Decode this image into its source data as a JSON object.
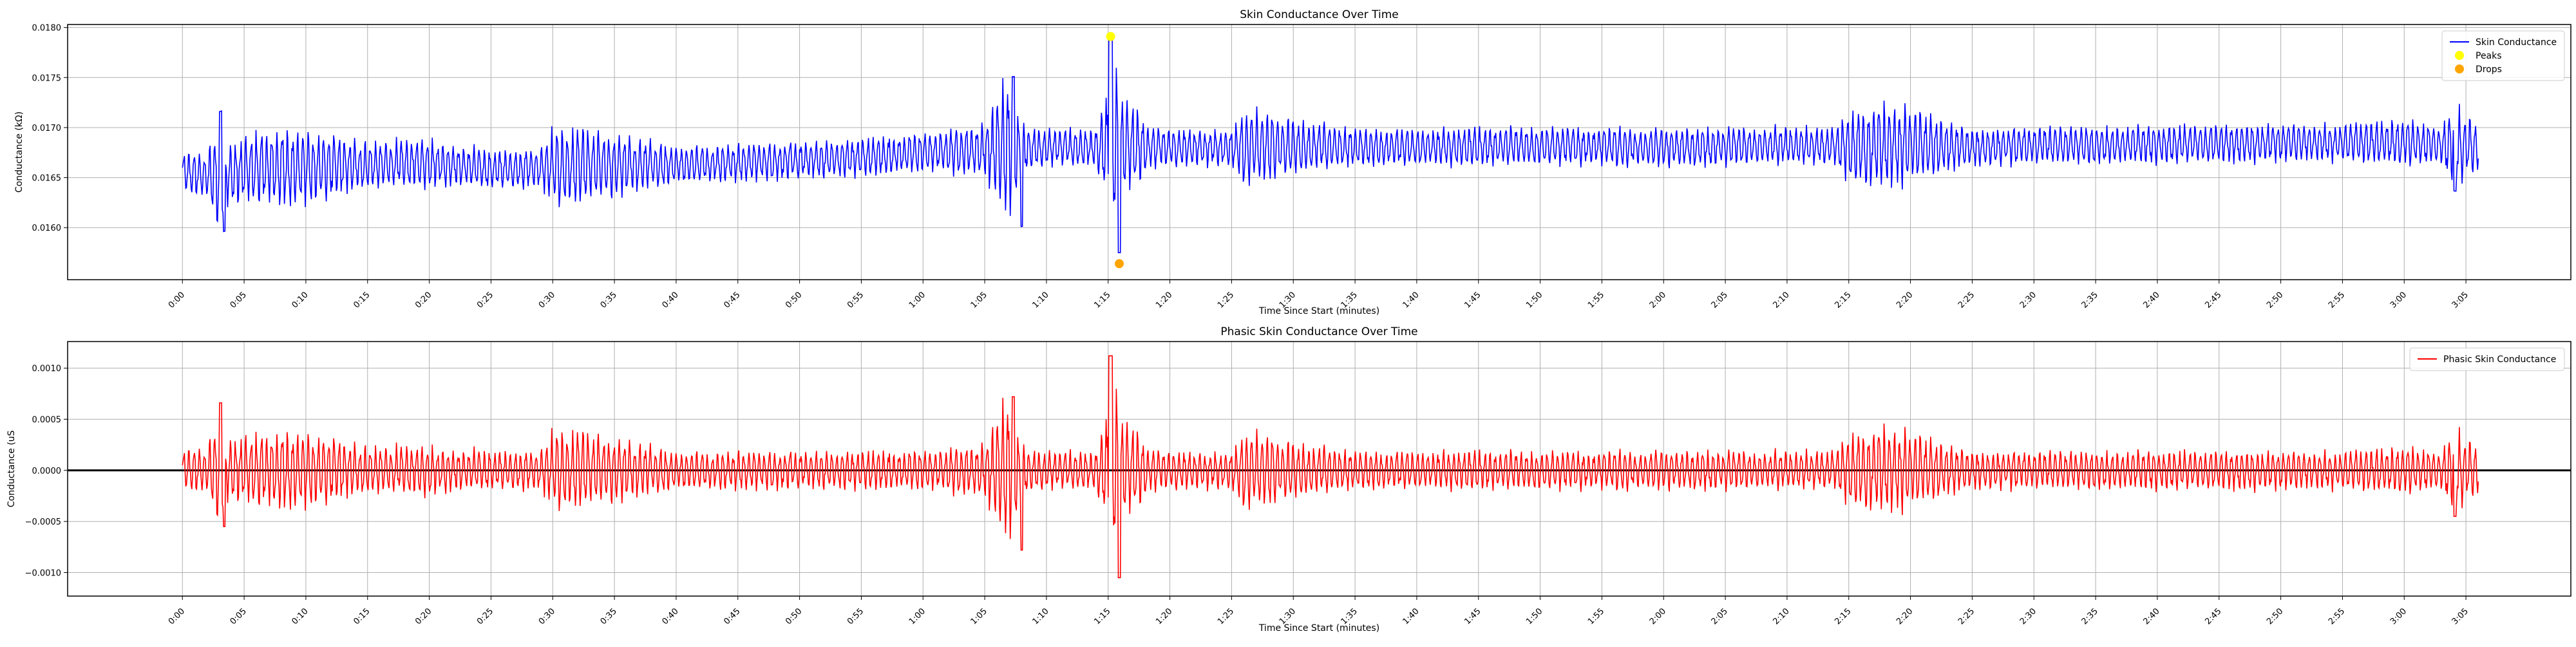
{
  "chart_data": [
    {
      "type": "line",
      "title": "Skin Conductance Over Time",
      "xlabel": "Time Since Start (minutes)",
      "ylabel": "Conductance (kΩ)",
      "x_unit": "minutes",
      "xlim": [
        -9.3,
        193.5
      ],
      "ylim": [
        0.01548,
        0.01803
      ],
      "xticks": [
        0,
        5,
        10,
        15,
        20,
        25,
        30,
        35,
        40,
        45,
        50,
        55,
        60,
        65,
        70,
        75,
        80,
        85,
        90,
        95,
        100,
        105,
        110,
        115,
        120,
        125,
        130,
        135,
        140,
        145,
        150,
        155,
        160,
        165,
        170,
        175,
        180,
        185
      ],
      "xtick_labels": [
        "0:00",
        "0:05",
        "0:10",
        "0:15",
        "0:20",
        "0:25",
        "0:30",
        "0:35",
        "0:40",
        "0:45",
        "0:50",
        "0:55",
        "1:00",
        "1:05",
        "1:10",
        "1:15",
        "1:20",
        "1:25",
        "1:30",
        "1:35",
        "1:40",
        "1:45",
        "1:50",
        "1:55",
        "2:00",
        "2:05",
        "2:10",
        "2:15",
        "2:20",
        "2:25",
        "2:30",
        "2:35",
        "2:40",
        "2:45",
        "2:50",
        "2:55",
        "3:00",
        "3:05"
      ],
      "yticks": [
        0.016,
        0.0165,
        0.017,
        0.0175,
        0.018
      ],
      "ytick_labels": [
        "0.0160",
        "0.0165",
        "0.0170",
        "0.0175",
        "0.0180"
      ],
      "grid": true,
      "legend_position": "top-right",
      "baseline": {
        "x": [
          0,
          3,
          6,
          10,
          15,
          20,
          25,
          30,
          35,
          40,
          45,
          50,
          55,
          60,
          65,
          70,
          75,
          80,
          85,
          90,
          100,
          110,
          120,
          130,
          135,
          140,
          145,
          150,
          160,
          170,
          180,
          186
        ],
        "y": [
          0.01655,
          0.0165,
          0.0166,
          0.0166,
          0.01662,
          0.01665,
          0.01658,
          0.0166,
          0.01662,
          0.01663,
          0.01665,
          0.01667,
          0.0167,
          0.01675,
          0.01678,
          0.0168,
          0.0168,
          0.0168,
          0.0168,
          0.01681,
          0.0168,
          0.01682,
          0.0168,
          0.01682,
          0.0168,
          0.01682,
          0.0168,
          0.01682,
          0.01683,
          0.01685,
          0.01685,
          0.0168
        ]
      },
      "envelope": {
        "x": [
          0,
          2,
          3,
          3.5,
          5,
          8,
          10,
          15,
          20,
          25,
          29,
          30,
          32,
          35,
          40,
          45,
          50,
          55,
          60,
          64,
          65,
          66.5,
          67,
          68,
          70,
          74,
          74.8,
          75.2,
          75.6,
          76,
          77,
          78,
          80,
          85,
          86,
          90,
          95,
          100,
          110,
          120,
          130,
          134,
          135,
          137,
          140,
          145,
          150,
          155,
          160,
          165,
          170,
          175,
          180,
          183,
          184,
          186
        ],
        "amp": [
          0.0002,
          0.00025,
          0.00065,
          0.0003,
          0.00035,
          0.0004,
          0.0004,
          0.00025,
          0.00025,
          0.0002,
          0.0002,
          0.0004,
          0.0004,
          0.00035,
          0.0002,
          0.0002,
          0.0002,
          0.0002,
          0.0002,
          0.00025,
          0.0003,
          0.0007,
          0.0007,
          0.00025,
          0.0002,
          0.0002,
          0.0006,
          0.0011,
          0.001,
          0.0005,
          0.0005,
          0.00025,
          0.0002,
          0.0002,
          0.0004,
          0.0003,
          0.0002,
          0.0002,
          0.0002,
          0.0002,
          0.0002,
          0.0002,
          0.0004,
          0.00045,
          0.0004,
          0.0002,
          0.0002,
          0.0002,
          0.0002,
          0.0002,
          0.0002,
          0.0002,
          0.00025,
          0.0002,
          0.00045,
          0.00025
        ]
      },
      "series": [
        {
          "name": "Skin Conductance",
          "color": "#0000ff",
          "kind": "line"
        },
        {
          "name": "Peaks",
          "color": "#ffff00",
          "kind": "marker",
          "points": [
            {
              "x": 75.2,
              "y": 0.01791
            }
          ]
        },
        {
          "name": "Drops",
          "color": "#ffa500",
          "kind": "marker",
          "points": [
            {
              "x": 75.9,
              "y": 0.01564
            }
          ]
        }
      ]
    },
    {
      "type": "line",
      "title": "Phasic Skin Conductance Over Time",
      "xlabel": "Time Since Start (minutes)",
      "ylabel": "Conductance (uS",
      "x_unit": "minutes",
      "xlim": [
        -9.3,
        193.5
      ],
      "ylim": [
        -0.00123,
        0.00126
      ],
      "xticks": [
        0,
        5,
        10,
        15,
        20,
        25,
        30,
        35,
        40,
        45,
        50,
        55,
        60,
        65,
        70,
        75,
        80,
        85,
        90,
        95,
        100,
        105,
        110,
        115,
        120,
        125,
        130,
        135,
        140,
        145,
        150,
        155,
        160,
        165,
        170,
        175,
        180,
        185
      ],
      "xtick_labels": [
        "0:00",
        "0:05",
        "0:10",
        "0:15",
        "0:20",
        "0:25",
        "0:30",
        "0:35",
        "0:40",
        "0:45",
        "0:50",
        "0:55",
        "1:00",
        "1:05",
        "1:10",
        "1:15",
        "1:20",
        "1:25",
        "1:30",
        "1:35",
        "1:40",
        "1:45",
        "1:50",
        "1:55",
        "2:00",
        "2:05",
        "2:10",
        "2:15",
        "2:20",
        "2:25",
        "2:30",
        "2:35",
        "2:40",
        "2:45",
        "2:50",
        "2:55",
        "3:00",
        "3:05"
      ],
      "yticks": [
        -0.001,
        -0.0005,
        0,
        0.0005,
        0.001
      ],
      "ytick_labels": [
        "−0.0010",
        "−0.0005",
        "0.0000",
        "0.0005",
        "0.0010"
      ],
      "grid": true,
      "legend_position": "top-right",
      "zero_line": true,
      "series": [
        {
          "name": "Phasic Skin Conductance",
          "color": "#ff0000",
          "kind": "line"
        }
      ]
    }
  ]
}
